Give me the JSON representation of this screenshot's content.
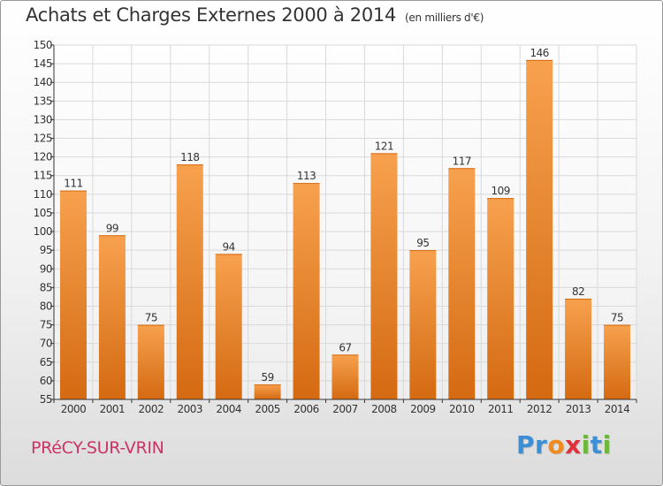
{
  "title": "Achats et Charges Externes 2000 à 2014",
  "unit_note": "(en milliers d'€)",
  "commune": "PRéCY-SUR-VRIN",
  "brand": {
    "letters": [
      "P",
      "r",
      "o",
      "x",
      "i",
      "t",
      "i"
    ],
    "colors": [
      "#3a8fd6",
      "#3a8fd6",
      "#f08a1c",
      "#e0303a",
      "#6cb83a",
      "#3a8fd6",
      "#6cb83a"
    ]
  },
  "colors": {
    "bar_light": "#f7a14e",
    "bar_dark": "#d46a12",
    "grid": "#d9d9d9",
    "axis": "#333333",
    "title": "#333333",
    "commune": "#cc3366"
  },
  "chart_data": {
    "type": "bar",
    "title": "Achats et Charges Externes 2000 à 2014",
    "subtitle": "(en milliers d'€)",
    "categories": [
      "2000",
      "2001",
      "2002",
      "2003",
      "2004",
      "2005",
      "2006",
      "2007",
      "2008",
      "2009",
      "2010",
      "2011",
      "2012",
      "2013",
      "2014"
    ],
    "values": [
      111,
      99,
      75,
      118,
      94,
      59,
      113,
      67,
      121,
      95,
      117,
      109,
      146,
      82,
      75
    ],
    "ylim": [
      55,
      150
    ],
    "yticks": [
      55,
      60,
      65,
      70,
      75,
      80,
      85,
      90,
      95,
      100,
      105,
      110,
      115,
      120,
      125,
      130,
      135,
      140,
      145,
      150
    ],
    "grid": true,
    "data_labels": true
  }
}
